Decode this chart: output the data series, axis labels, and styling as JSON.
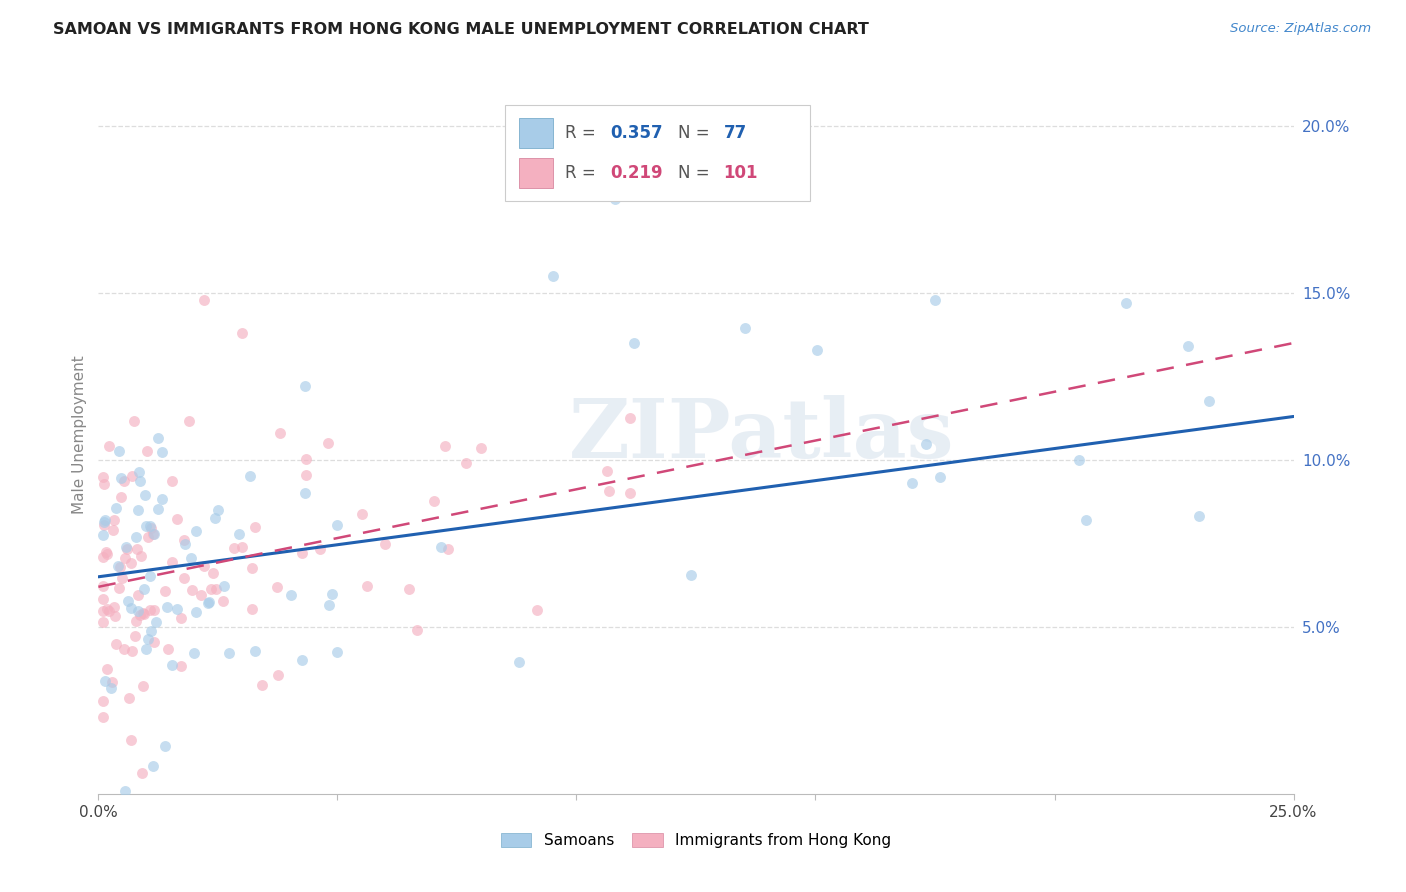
{
  "title": "SAMOAN VS IMMIGRANTS FROM HONG KONG MALE UNEMPLOYMENT CORRELATION CHART",
  "source": "Source: ZipAtlas.com",
  "ylabel": "Male Unemployment",
  "xlim": [
    0.0,
    0.25
  ],
  "ylim": [
    0.0,
    0.215
  ],
  "samoans_color": "#a8cce8",
  "hk_color": "#f4b0c0",
  "samoans_line_color": "#2060b0",
  "hk_line_color": "#d04878",
  "samoans_R": "0.357",
  "samoans_N": "77",
  "hk_R": "0.219",
  "hk_N": "101",
  "legend_label_samoans": "Samoans",
  "legend_label_hk": "Immigrants from Hong Kong",
  "watermark": "ZIPatlas",
  "background_color": "#ffffff",
  "grid_color": "#dddddd",
  "ytick_color": "#4472c4",
  "title_color": "#222222",
  "source_color": "#4488cc",
  "ylabel_color": "#888888",
  "samoans_line_start_y": 0.065,
  "samoans_line_end_y": 0.113,
  "hk_line_start_y": 0.062,
  "hk_line_end_y": 0.135
}
